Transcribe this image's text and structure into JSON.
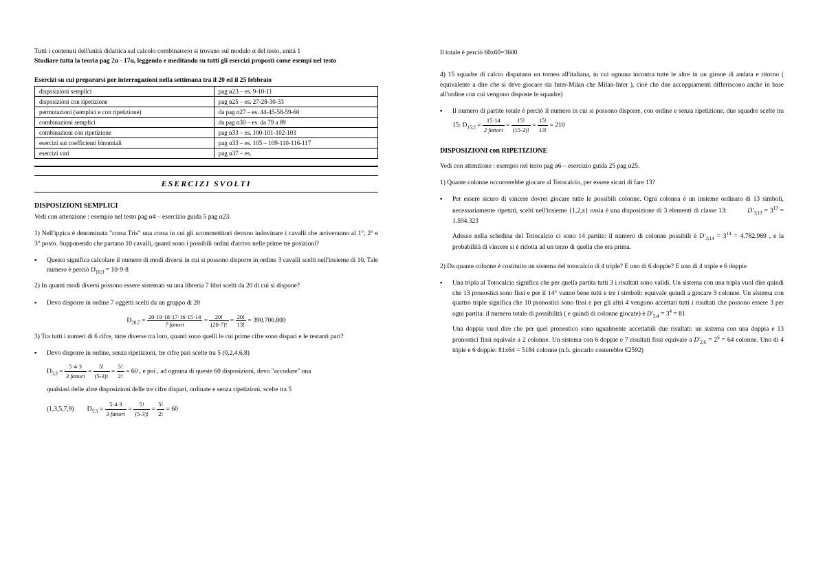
{
  "left": {
    "intro": "Tutti i contenuti dell'unità didattica sul calcolo combinatorio si trovano sul modulo α del testo, unità 1",
    "introBold": "Studiare tutta la teoria pag 2α - 17α, leggendo e meditando su tutti gli esercizi proposti come esempi nel testo",
    "tableCaption": "Esercizi su cui prepararsi per interrogazioni nella settimana tra il 20 ed il 25 febbraio",
    "table": {
      "rows": [
        [
          "disposizioni semplici",
          "pag α23 – es. 9-10-11"
        ],
        [
          "disposizioni con ripetizione",
          "pag α25 – es. 27-28-30-33"
        ],
        [
          "permutazioni (semplici e con ripetizione)",
          "da pag α27 – es. 44-45-58-59-60"
        ],
        [
          "combinazioni semplici",
          "da pag α30 – es. da 79 a 89"
        ],
        [
          "combinazioni con ripetizione",
          "pag α33 – es. 100-101-102-103"
        ],
        [
          "esercizi sui coefficienti binomiali",
          "pag α33 – es. 105 – 109-110-116-117"
        ],
        [
          "esercizi vari",
          "pag α37 – es."
        ]
      ]
    },
    "titleBox": "ESERCIZI SVOLTI",
    "h1": "DISPOSIZIONI SEMPLICI",
    "p1": "Vedi con attenzione : esempio nel testo pag α4 – esercizio guida 5 pag α23.",
    "q1": "1) Nell'ippica è denominata \"corsa Tris\" una corsa in cui gli scommettitori devono indovinare i cavalli che arriveranno al 1°, 2° e 3° posto. Supponendo che partano 10 cavalli, quanti sono i possibili ordini d'arrivo nelle prime tre posizioni?",
    "q1b": "Questo significa calcolare il numero di modi diversi in cui si possono disporre in ordine 3 cavalli scelti nell'insieme di 10. Tale numero è perciò D",
    "q1b_end": " = 10·9·8",
    "q2": "2) In quanti modi diversi possono essere sistemati su una libreria 7 libri scelti da 20 di cui si dispone?",
    "q2b": "Devo disporre in ordine 7 oggetti scelti da un gruppo di 20",
    "f2_pre": "D",
    "f2_sub": "20;7",
    "f2_num1": "20·19·18·17·16·15·14",
    "f2_den1": "7 fattori",
    "f2_num2": "20!",
    "f2_den2": "(20-7)!",
    "f2_num3": "20!",
    "f2_den3": "13!",
    "f2_res": "= 390.700.800",
    "q3": "3) Tra tutti i numeri di 6 cifre, tutte diverse tra loro, quanti sono quelli le cui prime cifre sono dispari e le restanti pari?",
    "q3b1": "Devo disporre in ordine, senza ripetizioni, tre cifre pari scelte tra 5 (0,2,4,6,8)",
    "f3a_pre": "D",
    "f3a_sub": "5;3",
    "f3a_num1": "5·4·3",
    "f3a_den1": "3 fattori",
    "f3a_num2": "5!",
    "f3a_den2": "(5-3)!",
    "f3a_num3": "5!",
    "f3a_den3": "2!",
    "f3a_res": "= 60 ,  e poi , ad ognuna di queste 60 disposizioni, devo \"accodare\" una",
    "q3b2": "qualsiasi delle altre disposizioni delle tre cifre dispari, ordinate e senza ripetizioni, scelte tra 5",
    "q3c": "(1,3,5,7,9)",
    "f3b_pre": "D",
    "f3b_sub": "5;3",
    "f3b_num1": "5·4·3",
    "f3b_den1": "3 fattori",
    "f3b_num2": "5!",
    "f3b_den2": "(5-3)!",
    "f3b_num3": "5!",
    "f3b_den3": "2!",
    "f3b_res": "= 60"
  },
  "right": {
    "top": "Il totale è perciò 60x60=3600",
    "q4": "4) 15 squadre di calcio disputano un torneo all'italiana, in cui ognuna incontra tutte le altre in un girone di andata e ritorno ( equivalente a dire che si deve giocare sia Inter-Milan che Milan-Inter ), cioè che due accoppiamenti differiscono anche in base all'ordine con cui vengono disposte le squadre)",
    "q4b": "Il numero di partite totale è perciò il numero in cui si possono disporre, con ordine e senza ripetizione, due squadre scelte tra 15:  D",
    "f4_num1": "15·14",
    "f4_den1": "2 fattori",
    "f4_num2": "15!",
    "f4_den2": "(15-2)!",
    "f4_num3": "15!",
    "f4_den3": "13!",
    "f4_res": "= 210",
    "h2": "DISPOSIZIONI con RIPETIZIONE",
    "p2": "Vedi con attenzione : esempio nel testo pag α6 – esercizio guida 25 pag α25.",
    "r1": "1) Quante colonne occorrerebbe giocare al Totocalcio, per essere sicuri di fare 13?",
    "r1b1": "Per essere sicuro di vincere dovrei giocare tutte le possibili colonne. Ogni colonna è un insieme ordinato di 13 simboli, necessariamente ripetuti, scelti nell'insieme {1,2,x} ossia è una disposizione di 3 elementi di classe 13:",
    "r1f1": "= 1.594.323",
    "r1b2": "Adesso nella schedina del Totocalcio ci sono 14 partite: il numero di colonne possibili è",
    "r1f2": "= 4.782.969 , e la probabilità di vincere si è ridotta ad un terzo di quella che era prima.",
    "r2": "2) Da quante colonne è costituito un sistema del totocalcio di 4 triple? E uno di 6 doppie? E uno di 4 triple e 6 doppie",
    "r2b1a": "Una tripla al Totocalcio significa che per quella partita tutti 3 i risultati sono validi. Un sistema con una tripla vuol dire quindi che 13 pronostici sono fissi e per il 14° vanno bene tutti e tre i simboli: equivale quindi a giocare 3 colonne. Un sistema con quattro triple significa che 10 pronostici sono fissi e per gli altri 4 vengono accettati tutti i risultati che possono essere 3 per ogni partita: il numero totale di possibilità ( e quindi di colonne giocate) è ",
    "r2b1b": "= 81",
    "r2b2a": "Una doppia vuol dire che per quel pronostico sono ugualmente accettabili due risultati: un sistema con una doppia e 13 pronostici fissi equivale a 2 colonne. Un sistema con 6 doppie e 7 risultati fissi equivale a ",
    "r2b2b": " colonne. Uno di 4 triple e 6 doppie: 81x64 = 5184 colonne (n.b. giocarlo costerebbe €2592)"
  }
}
